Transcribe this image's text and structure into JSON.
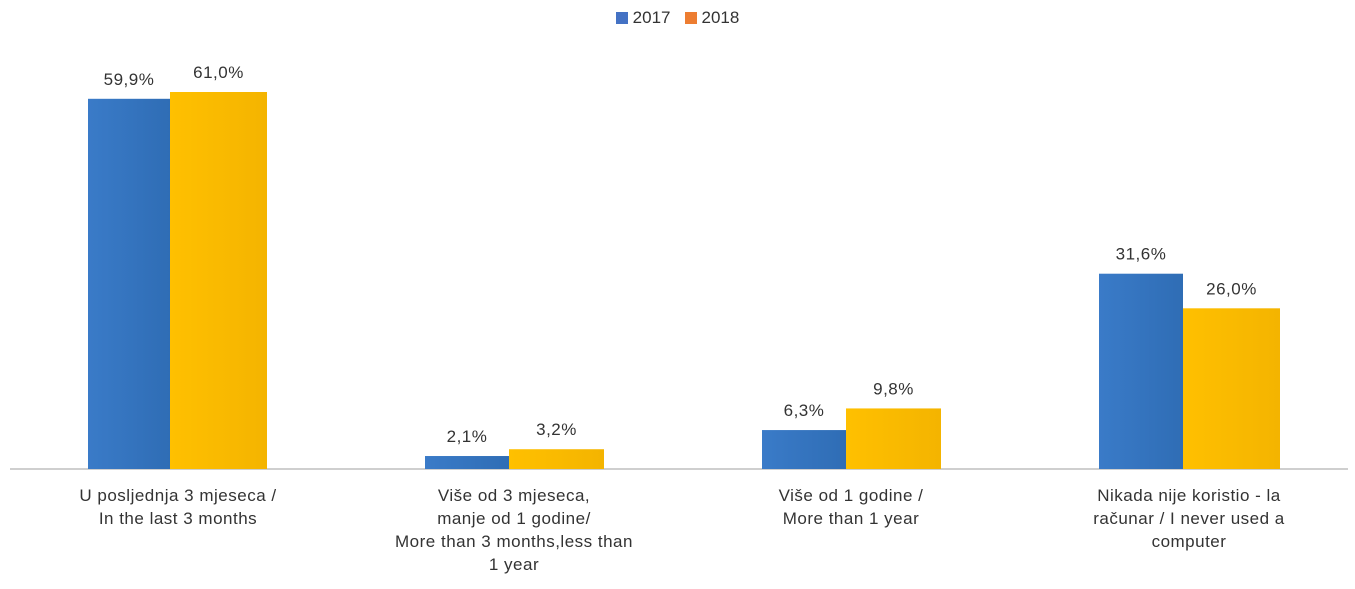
{
  "chart_data": {
    "type": "bar",
    "categories": [
      [
        "U posljednja 3 mjeseca /",
        "In the last 3 months"
      ],
      [
        "Više od 3 mjeseca,",
        "manje od 1 godine/",
        "More than 3 months,less than",
        "1 year"
      ],
      [
        "Više od 1 godine /",
        "More than 1 year"
      ],
      [
        "Nikada nije koristio - la",
        "računar / I never used a",
        "computer"
      ]
    ],
    "series": [
      {
        "name": "2017",
        "values": [
          59.9,
          2.1,
          6.3,
          31.6
        ],
        "labels": [
          "59,9%",
          "2,1%",
          "6,3%",
          "31,6%"
        ],
        "color": "#3a7bc8",
        "legend_color": "#4472c4"
      },
      {
        "name": "2018",
        "values": [
          61.0,
          3.2,
          9.8,
          26.0
        ],
        "labels": [
          "61,0%",
          "3,2%",
          "9,8%",
          "26,0%"
        ],
        "color": "#ffc000",
        "legend_color": "#ed7d31"
      }
    ],
    "ylim": [
      0,
      61
    ],
    "legend_position": "top-center",
    "grid": false
  }
}
